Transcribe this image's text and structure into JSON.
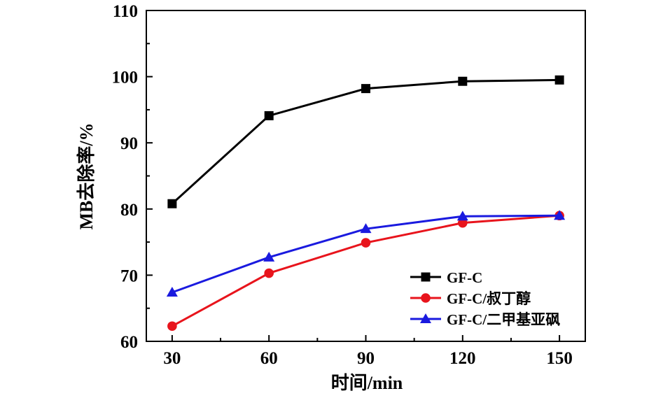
{
  "chart_data": {
    "type": "line",
    "title": "",
    "xlabel": "时间/min",
    "ylabel": "MB去除率/%",
    "x": [
      30,
      60,
      90,
      120,
      150
    ],
    "xticks": [
      "30",
      "60",
      "90",
      "120",
      "150"
    ],
    "yticks": [
      "60",
      "70",
      "80",
      "90",
      "100",
      "110"
    ],
    "xlim": [
      22,
      158
    ],
    "ylim": [
      60,
      110
    ],
    "grid": false,
    "legend_position": "lower-right",
    "series": [
      {
        "name": "GF-C",
        "color": "#000000",
        "marker": "square",
        "values": [
          80.8,
          94.1,
          98.2,
          99.3,
          99.5
        ]
      },
      {
        "name": "GF-C/叔丁醇",
        "color": "#e8141c",
        "marker": "circle",
        "values": [
          62.3,
          70.3,
          74.9,
          77.9,
          79.0
        ]
      },
      {
        "name": "GF-C/二甲基亚砜",
        "color": "#1a1adf",
        "marker": "triangle",
        "values": [
          67.4,
          72.7,
          77.0,
          78.9,
          79.0
        ]
      }
    ]
  }
}
